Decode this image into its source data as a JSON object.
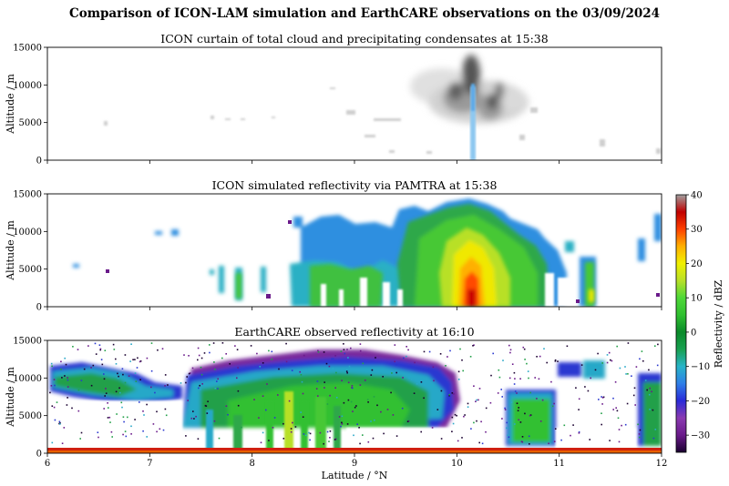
{
  "figure": {
    "title": "Comparison of ICON-LAM simulation and EarthCARE observations on the 03/09/2024"
  },
  "chart_data": [
    {
      "type": "heatmap",
      "title": "ICON curtain of total cloud and precipitating condensates at 15:38",
      "ylabel": "Altitude / m",
      "xlim": [
        6,
        12
      ],
      "ylim": [
        0,
        15000
      ],
      "yticks": [
        "0",
        "5000",
        "10000",
        "15000"
      ],
      "colormap": "greys",
      "features": [
        {
          "lat": 10.1,
          "alt_range": [
            3000,
            14000
          ],
          "intensity": "high",
          "note_color": "#3c3c3c"
        },
        {
          "lat": 10.17,
          "alt_range": [
            0,
            10000
          ],
          "intensity": "precipitation",
          "note_color": "#8ec8f0"
        }
      ]
    },
    {
      "type": "heatmap",
      "title": "ICON simulated reflectivity via PAMTRA at 15:38",
      "ylabel": "Altitude / m",
      "xlim": [
        6,
        12
      ],
      "ylim": [
        0,
        15000
      ],
      "yticks": [
        "0",
        "5000",
        "10000",
        "15000"
      ],
      "colormap": "reflectivity",
      "peak": {
        "lat": 10.15,
        "alt": 3500,
        "dBZ": 35
      }
    },
    {
      "type": "heatmap",
      "title": "EarthCARE observed reflectivity at 16:10",
      "ylabel": "Altitude / m",
      "xlabel": "Latitude / °N",
      "xlim": [
        6,
        12
      ],
      "ylim": [
        0,
        15000
      ],
      "xticks": [
        "6",
        "7",
        "8",
        "9",
        "10",
        "11",
        "12"
      ],
      "yticks": [
        "0",
        "5000",
        "10000",
        "15000"
      ],
      "colormap": "reflectivity"
    }
  ],
  "colorbar": {
    "label": "Reflectivity / dBZ",
    "range": [
      -35,
      40
    ],
    "ticks": [
      "−30",
      "−20",
      "−10",
      "0",
      "10",
      "20",
      "30",
      "40"
    ],
    "tick_values": [
      -30,
      -20,
      -10,
      0,
      10,
      20,
      30,
      40
    ],
    "stops": [
      {
        "v": -35,
        "c": "#1a0030"
      },
      {
        "v": -30,
        "c": "#6a1a8a"
      },
      {
        "v": -25,
        "c": "#8a3ab0"
      },
      {
        "v": -20,
        "c": "#2a2ad8"
      },
      {
        "v": -15,
        "c": "#2f7fe8"
      },
      {
        "v": -10,
        "c": "#28b4c8"
      },
      {
        "v": -5,
        "c": "#18a050"
      },
      {
        "v": 0,
        "c": "#0a8a2a"
      },
      {
        "v": 5,
        "c": "#30c030"
      },
      {
        "v": 10,
        "c": "#4ed838"
      },
      {
        "v": 15,
        "c": "#b8e028"
      },
      {
        "v": 20,
        "c": "#f0f000"
      },
      {
        "v": 25,
        "c": "#ffb000"
      },
      {
        "v": 30,
        "c": "#ff4000"
      },
      {
        "v": 35,
        "c": "#c00000"
      },
      {
        "v": 40,
        "c": "#a0a0a0"
      }
    ]
  }
}
